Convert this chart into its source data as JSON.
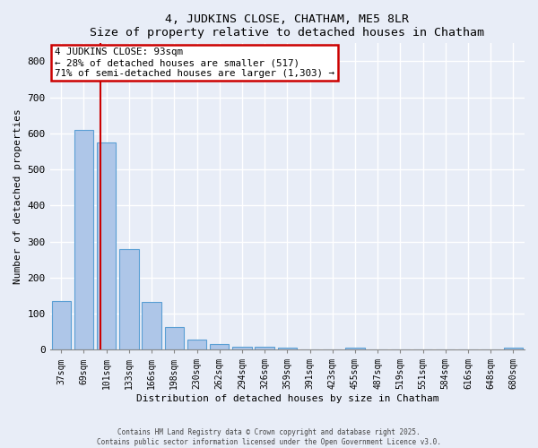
{
  "title": "4, JUDKINS CLOSE, CHATHAM, ME5 8LR",
  "subtitle": "Size of property relative to detached houses in Chatham",
  "xlabel": "Distribution of detached houses by size in Chatham",
  "ylabel": "Number of detached properties",
  "bin_labels": [
    "37sqm",
    "69sqm",
    "101sqm",
    "133sqm",
    "166sqm",
    "198sqm",
    "230sqm",
    "262sqm",
    "294sqm",
    "326sqm",
    "359sqm",
    "391sqm",
    "423sqm",
    "455sqm",
    "487sqm",
    "519sqm",
    "551sqm",
    "584sqm",
    "616sqm",
    "648sqm",
    "680sqm"
  ],
  "bar_heights": [
    135,
    610,
    575,
    278,
    132,
    62,
    28,
    15,
    8,
    8,
    5,
    0,
    0,
    5,
    0,
    0,
    0,
    0,
    0,
    0,
    5
  ],
  "bar_color": "#aec6e8",
  "bar_edge_color": "#5a9fd4",
  "background_color": "#e8edf7",
  "grid_color": "#ffffff",
  "red_line_x": 1.72,
  "annotation_line1": "4 JUDKINS CLOSE: 93sqm",
  "annotation_line2": "← 28% of detached houses are smaller (517)",
  "annotation_line3": "71% of semi-detached houses are larger (1,303) →",
  "annotation_box_color": "#ffffff",
  "annotation_box_edge": "#cc0000",
  "ylim": [
    0,
    850
  ],
  "yticks": [
    0,
    100,
    200,
    300,
    400,
    500,
    600,
    700,
    800
  ],
  "footer1": "Contains HM Land Registry data © Crown copyright and database right 2025.",
  "footer2": "Contains public sector information licensed under the Open Government Licence v3.0."
}
